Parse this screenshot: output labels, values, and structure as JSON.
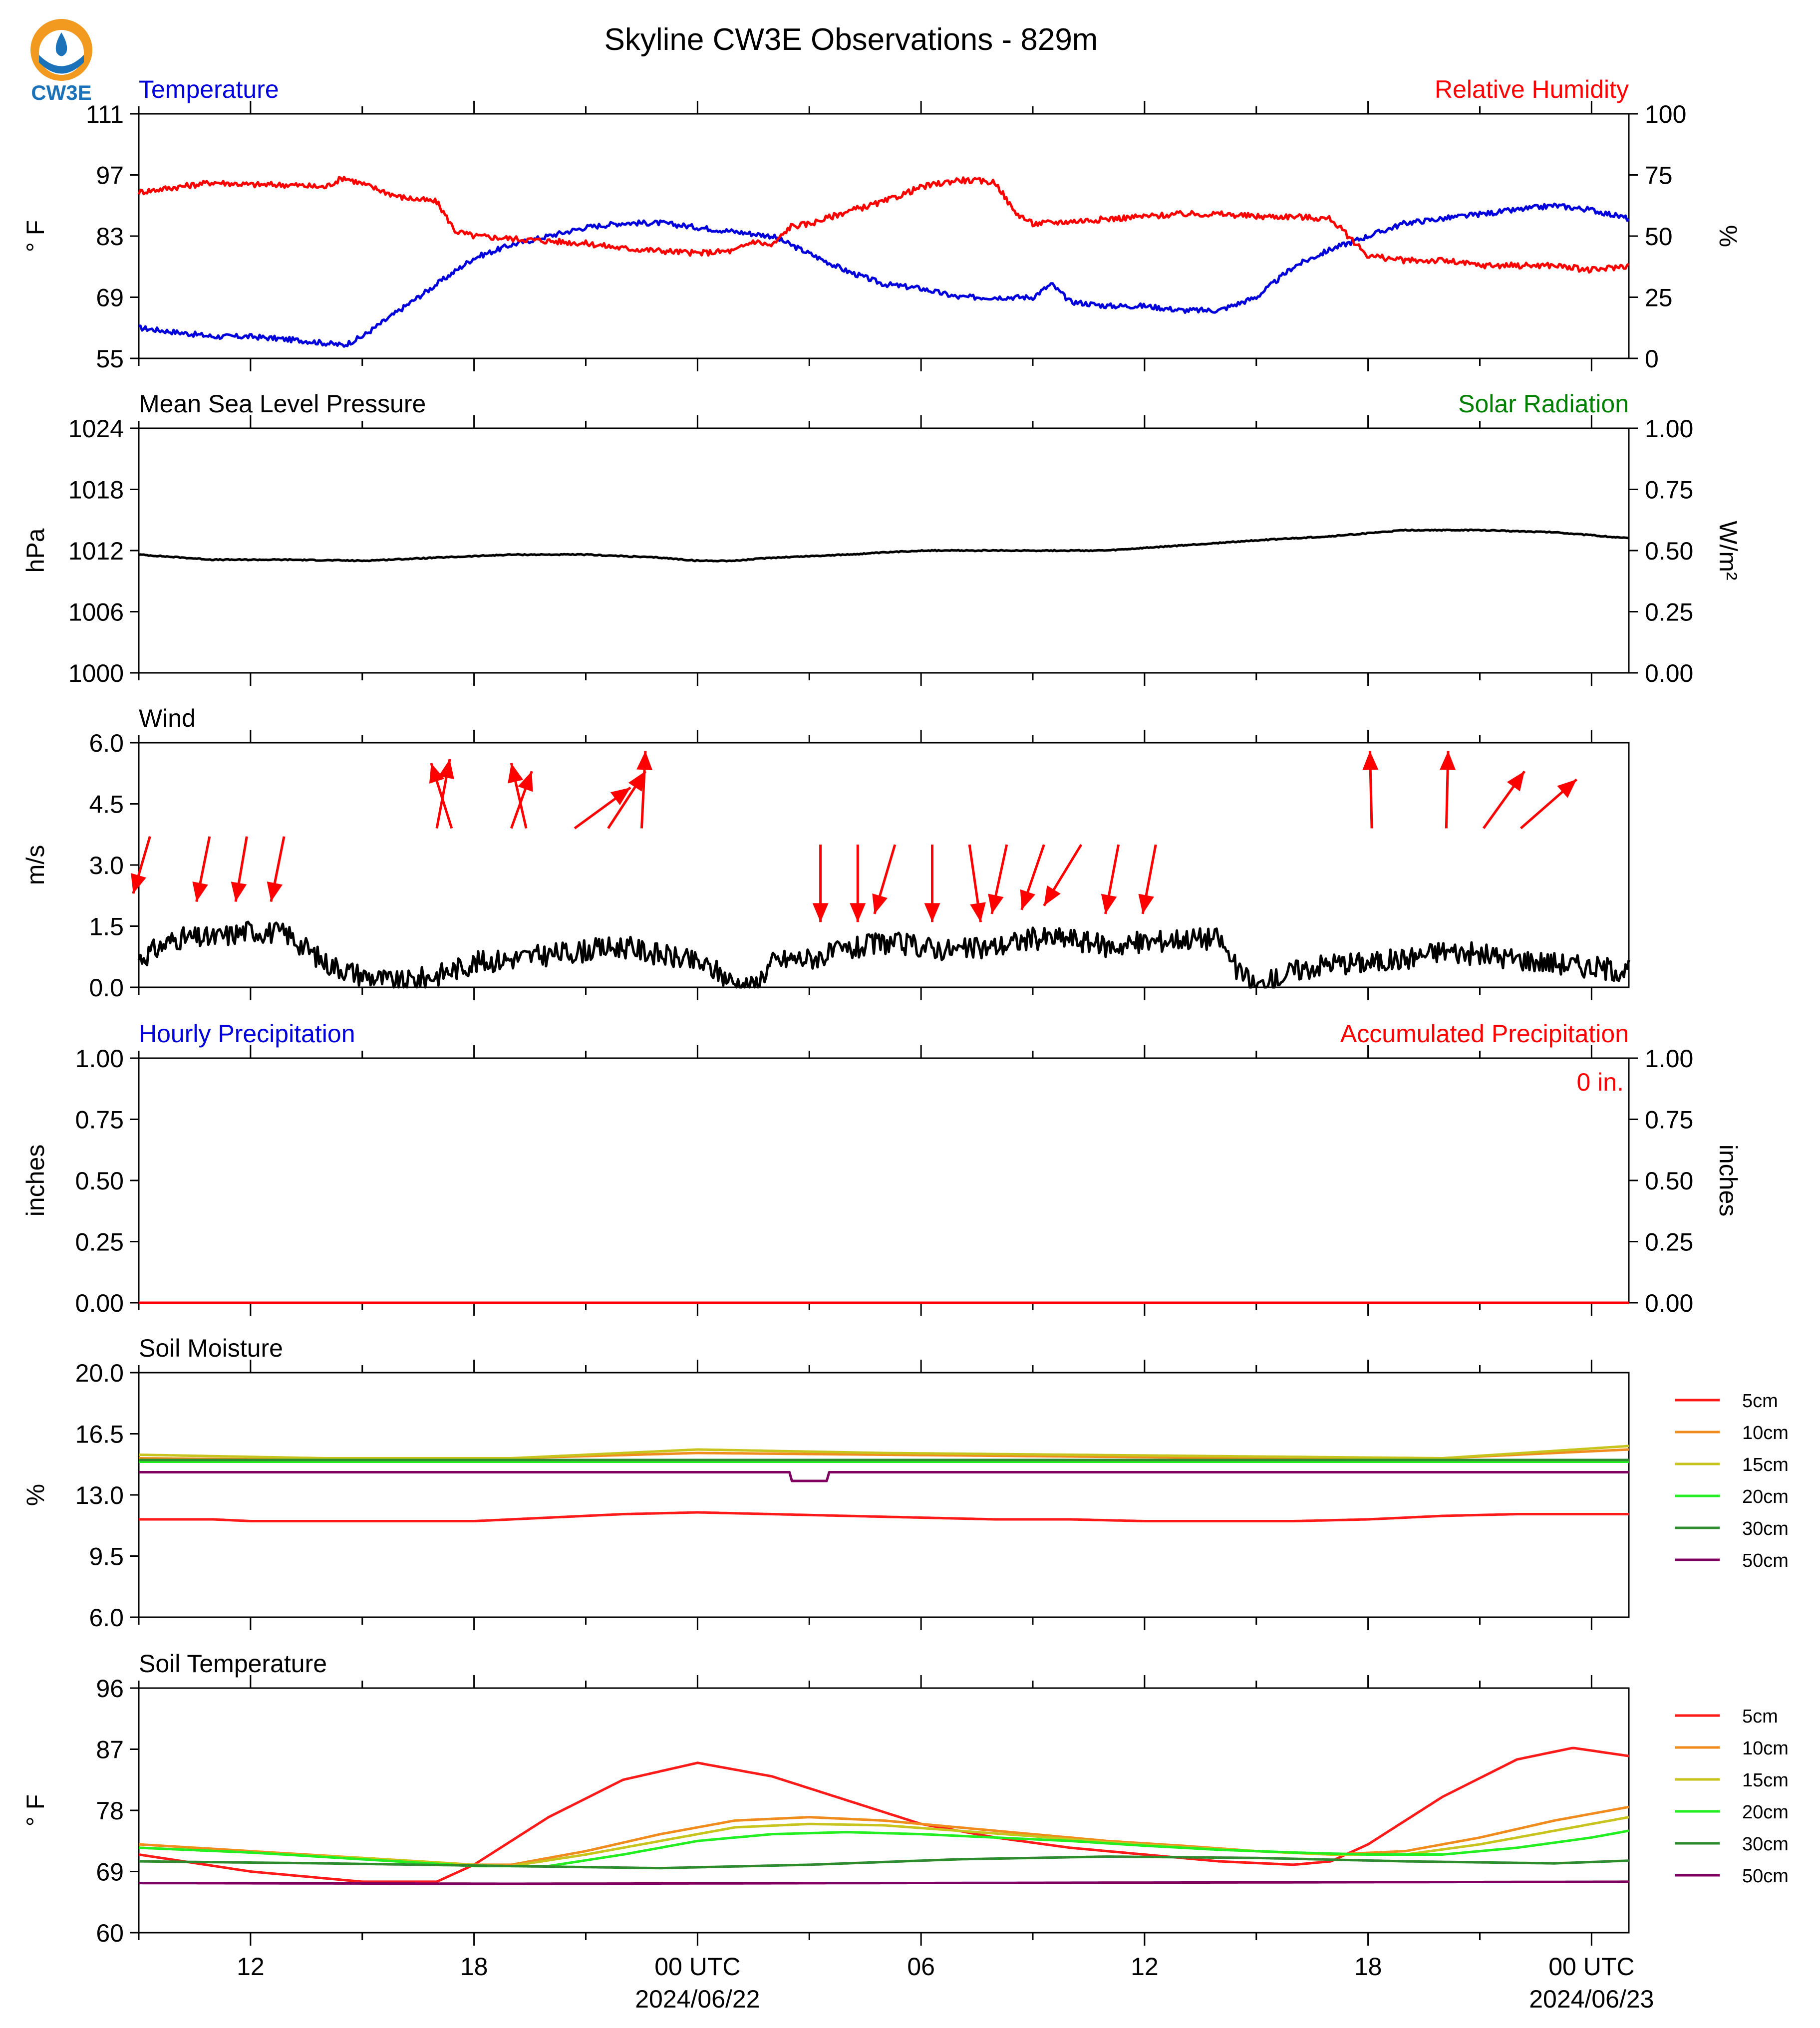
{
  "header": {
    "title": "Skyline CW3E Observations - 829m",
    "logo_text": "CW3E"
  },
  "colors": {
    "blue": "#0000dd",
    "red": "#ff0000",
    "green": "#008000",
    "black": "#000000",
    "soil_5cm": "#ff1a1a",
    "soil_10cm": "#f08c1e",
    "soil_15cm": "#c8c41e",
    "soil_20cm": "#22ee22",
    "soil_30cm": "#2e8b2e",
    "soil_50cm": "#800060"
  },
  "x_axis": {
    "range_hours": [
      -15,
      25
    ],
    "ticks_major": [
      {
        "hour": -12,
        "label": "12",
        "sub": ""
      },
      {
        "hour": -6,
        "label": "18",
        "sub": ""
      },
      {
        "hour": 0,
        "label": "00 UTC",
        "sub": "2024/06/22"
      },
      {
        "hour": 6,
        "label": "06",
        "sub": ""
      },
      {
        "hour": 12,
        "label": "12",
        "sub": ""
      },
      {
        "hour": 18,
        "label": "18",
        "sub": ""
      },
      {
        "hour": 24,
        "label": "00 UTC",
        "sub": "2024/06/23"
      }
    ]
  },
  "chart_data": [
    {
      "type": "line",
      "name": "temperature-humidity",
      "title_left": "Temperature",
      "title_right": "Relative Humidity",
      "ylabel_left": "° F",
      "ylabel_right": "%",
      "ylim_left": [
        55,
        111
      ],
      "yticks_left": [
        "111",
        "97",
        "83",
        "69",
        "55"
      ],
      "ylim_right": [
        0,
        100
      ],
      "yticks_right": [
        "100",
        "75",
        "50",
        "25",
        "0"
      ],
      "series": [
        {
          "key": "temperature",
          "axis": "left",
          "color": "#0000dd",
          "x": [
            -15,
            -13,
            -12,
            -10.5,
            -9.5,
            -9,
            -8,
            -7,
            -6,
            -5,
            -4,
            -3,
            -2,
            -1,
            0,
            1,
            2,
            3,
            4,
            5,
            6,
            7,
            8,
            9,
            9.5,
            10,
            11,
            12,
            13,
            14,
            15,
            16,
            17,
            18,
            19,
            20,
            21,
            22,
            23,
            24,
            25
          ],
          "y": [
            62,
            60,
            60,
            59,
            58,
            60,
            66,
            72,
            78,
            81,
            83,
            85,
            86,
            86,
            85,
            84,
            83,
            79,
            75,
            72,
            71,
            69,
            69,
            69,
            72,
            68,
            67,
            67,
            66,
            66,
            69,
            76,
            80,
            83,
            86,
            87,
            88,
            89,
            90,
            89,
            87
          ]
        },
        {
          "key": "relative_humidity",
          "axis": "right",
          "color": "#ff0000",
          "x": [
            -15,
            -13,
            -12,
            -11,
            -10,
            -9.5,
            -8,
            -7,
            -6.5,
            -6,
            -5,
            -4,
            -3,
            -2,
            -1,
            0,
            1,
            1.5,
            2,
            2.5,
            3,
            4,
            5,
            6,
            7,
            8,
            8.5,
            9,
            10,
            11,
            12,
            13,
            14,
            15,
            16,
            17,
            18,
            19,
            20,
            21,
            22,
            23,
            24,
            25
          ],
          "y": [
            68,
            72,
            71,
            71,
            70,
            74,
            66,
            64,
            52,
            50,
            49,
            48,
            47,
            45,
            44,
            43,
            44,
            48,
            46,
            54,
            55,
            60,
            64,
            70,
            73,
            72,
            60,
            55,
            56,
            57,
            58,
            59,
            59,
            58,
            58,
            57,
            42,
            40,
            40,
            38,
            38,
            38,
            36,
            38
          ]
        }
      ]
    },
    {
      "type": "line",
      "name": "pressure",
      "title_left": "Mean Sea Level Pressure",
      "title_right": "Solar Radiation",
      "ylabel_left": "hPa",
      "ylabel_right": "W/m²",
      "ylim_left": [
        1000,
        1024
      ],
      "yticks_left": [
        "1024",
        "1018",
        "1012",
        "1006",
        "1000"
      ],
      "ylim_right": [
        0,
        1
      ],
      "yticks_right": [
        "1.00",
        "0.75",
        "0.50",
        "0.25",
        "0.00"
      ],
      "series": [
        {
          "key": "mslp",
          "axis": "left",
          "color": "#000000",
          "x": [
            -15,
            -13,
            -11,
            -9,
            -7,
            -5,
            -3,
            -1,
            0,
            1,
            2,
            4,
            6,
            8,
            10,
            11,
            13,
            15,
            17,
            19,
            21,
            23,
            25
          ],
          "y": [
            1011.6,
            1011.1,
            1011.1,
            1011.0,
            1011.3,
            1011.6,
            1011.6,
            1011.3,
            1011.0,
            1011.0,
            1011.3,
            1011.6,
            1012.0,
            1012.0,
            1012.0,
            1012.0,
            1012.5,
            1013.0,
            1013.4,
            1014.0,
            1014.0,
            1013.8,
            1013.2
          ]
        }
      ]
    },
    {
      "type": "line",
      "name": "wind",
      "title_left": "Wind",
      "ylabel_left": "m/s",
      "ylim_left": [
        0,
        6
      ],
      "yticks_left": [
        "6.0",
        "4.5",
        "3.0",
        "1.5",
        "0.0"
      ],
      "series": [
        {
          "key": "wind_speed",
          "axis": "left",
          "color": "#000000",
          "x": [
            -15,
            -14,
            -13,
            -12,
            -11,
            -10,
            -9,
            -8,
            -7,
            -6,
            -5,
            -4,
            -3,
            -2,
            -1,
            0,
            0.5,
            1,
            1.5,
            2,
            2.5,
            3,
            4,
            5,
            6,
            7,
            8,
            9,
            10,
            11,
            12,
            13,
            14,
            14.5,
            15,
            16,
            17,
            18,
            19,
            20,
            21,
            22,
            23,
            24,
            25
          ],
          "y": [
            0.7,
            1.2,
            1.2,
            1.4,
            1.3,
            0.6,
            0.3,
            0.1,
            0.3,
            0.6,
            0.7,
            0.8,
            0.9,
            1.0,
            0.8,
            0.6,
            0.4,
            0.1,
            0,
            0.6,
            0.7,
            0.7,
            0.9,
            1.1,
            1.0,
            0.9,
            1.0,
            1.2,
            1.2,
            1.0,
            1.1,
            1.2,
            1.2,
            0.4,
            0,
            0.4,
            0.6,
            0.6,
            0.7,
            0.9,
            0.8,
            0.7,
            0.6,
            0.5,
            0.4
          ]
        }
      ],
      "arrows": [
        {
          "x": -14.7,
          "y": 3.7,
          "dx": -0.45,
          "dy": -1.4
        },
        {
          "x": -13.1,
          "y": 3.7,
          "dx": -0.35,
          "dy": -1.6
        },
        {
          "x": -12.1,
          "y": 3.7,
          "dx": -0.3,
          "dy": -1.6
        },
        {
          "x": -11.1,
          "y": 3.7,
          "dx": -0.35,
          "dy": -1.6
        },
        {
          "x": -7.0,
          "y": 3.9,
          "dx": 0.35,
          "dy": 1.7
        },
        {
          "x": -6.6,
          "y": 3.9,
          "dx": -0.55,
          "dy": 1.6
        },
        {
          "x": -5.0,
          "y": 3.9,
          "dx": 0.55,
          "dy": 1.4
        },
        {
          "x": -4.6,
          "y": 3.9,
          "dx": -0.4,
          "dy": 1.6
        },
        {
          "x": -3.3,
          "y": 3.9,
          "dx": 1.5,
          "dy": 1.0
        },
        {
          "x": -2.4,
          "y": 3.9,
          "dx": 1.0,
          "dy": 1.4
        },
        {
          "x": -1.5,
          "y": 3.9,
          "dx": 0.1,
          "dy": 1.9
        },
        {
          "x": 3.3,
          "y": 3.5,
          "dx": 0.0,
          "dy": -1.9
        },
        {
          "x": 4.3,
          "y": 3.5,
          "dx": 0.0,
          "dy": -1.9
        },
        {
          "x": 5.3,
          "y": 3.5,
          "dx": -0.55,
          "dy": -1.7
        },
        {
          "x": 6.3,
          "y": 3.5,
          "dx": 0.0,
          "dy": -1.9
        },
        {
          "x": 7.3,
          "y": 3.5,
          "dx": 0.3,
          "dy": -1.9
        },
        {
          "x": 8.3,
          "y": 3.5,
          "dx": -0.4,
          "dy": -1.7
        },
        {
          "x": 9.3,
          "y": 3.5,
          "dx": -0.6,
          "dy": -1.6
        },
        {
          "x": 10.3,
          "y": 3.5,
          "dx": -1.0,
          "dy": -1.5
        },
        {
          "x": 11.3,
          "y": 3.5,
          "dx": -0.35,
          "dy": -1.7
        },
        {
          "x": 12.3,
          "y": 3.5,
          "dx": -0.35,
          "dy": -1.7
        },
        {
          "x": 18.1,
          "y": 3.9,
          "dx": -0.05,
          "dy": 1.9
        },
        {
          "x": 20.1,
          "y": 3.9,
          "dx": 0.05,
          "dy": 1.9
        },
        {
          "x": 21.1,
          "y": 3.9,
          "dx": 1.1,
          "dy": 1.4
        },
        {
          "x": 22.1,
          "y": 3.9,
          "dx": 1.5,
          "dy": 1.2
        }
      ]
    },
    {
      "type": "line",
      "name": "precipitation",
      "title_left": "Hourly Precipitation",
      "title_right": "Accumulated Precipitation",
      "annotation": "0 in.",
      "ylabel_left": "inches",
      "ylabel_right": "inches",
      "ylim_left": [
        0,
        1
      ],
      "yticks_left": [
        "1.00",
        "0.75",
        "0.50",
        "0.25",
        "0.00"
      ],
      "ylim_right": [
        0,
        1
      ],
      "yticks_right": [
        "1.00",
        "0.75",
        "0.50",
        "0.25",
        "0.00"
      ],
      "series": [
        {
          "key": "hourly_precip",
          "axis": "left",
          "color": "#0000dd",
          "x": [
            -15,
            25
          ],
          "y": [
            0,
            0
          ]
        },
        {
          "key": "accum_precip",
          "axis": "right",
          "color": "#ff0000",
          "x": [
            -15,
            25
          ],
          "y": [
            0,
            0
          ]
        }
      ]
    },
    {
      "type": "line",
      "name": "soil-moisture",
      "title_left": "Soil Moisture",
      "ylabel_left": "%",
      "ylim_left": [
        6,
        20
      ],
      "yticks_left": [
        "20.0",
        "16.5",
        "13.0",
        "9.5",
        "6.0"
      ],
      "series": [
        {
          "name": "5cm",
          "color": "#ff1a1a",
          "x": [
            -15,
            -13,
            -12,
            -6,
            -5,
            -4,
            -2,
            0,
            2,
            4,
            6,
            8,
            10,
            12,
            14,
            16,
            18,
            20,
            22,
            24,
            25
          ],
          "y": [
            11.6,
            11.6,
            11.5,
            11.5,
            11.6,
            11.7,
            11.9,
            12.0,
            11.9,
            11.8,
            11.7,
            11.6,
            11.6,
            11.5,
            11.5,
            11.5,
            11.6,
            11.8,
            11.9,
            11.9,
            11.9
          ]
        },
        {
          "name": "10cm",
          "color": "#f08c1e",
          "x": [
            -15,
            -10,
            -5,
            0,
            5,
            10,
            15,
            20,
            25
          ],
          "y": [
            15.1,
            15.0,
            15.1,
            15.4,
            15.3,
            15.2,
            15.1,
            15.1,
            15.6
          ]
        },
        {
          "name": "15cm",
          "color": "#c8c41e",
          "x": [
            -15,
            -10,
            -5,
            0,
            5,
            10,
            15,
            20,
            25
          ],
          "y": [
            15.3,
            15.1,
            15.1,
            15.6,
            15.4,
            15.3,
            15.2,
            15.1,
            15.8
          ]
        },
        {
          "name": "20cm",
          "color": "#22ee22",
          "x": [
            -15,
            25
          ],
          "y": [
            14.9,
            14.9
          ]
        },
        {
          "name": "30cm",
          "color": "#2e8b2e",
          "x": [
            -15,
            25
          ],
          "y": [
            15.0,
            15.0
          ]
        },
        {
          "name": "50cm",
          "color": "#800060",
          "x": [
            -15,
            -1.5,
            2.5,
            2.5,
            3.5,
            3.5,
            25
          ],
          "y": [
            14.3,
            14.3,
            14.3,
            13.8,
            13.8,
            14.3,
            14.3
          ]
        }
      ],
      "legend": [
        "5cm",
        "10cm",
        "15cm",
        "20cm",
        "30cm",
        "50cm"
      ]
    },
    {
      "type": "line",
      "name": "soil-temperature",
      "title_left": "Soil Temperature",
      "ylabel_left": "° F",
      "ylim_left": [
        60,
        96
      ],
      "yticks_left": [
        "96",
        "87",
        "78",
        "69",
        "60"
      ],
      "series": [
        {
          "name": "5cm",
          "color": "#ff1a1a",
          "x": [
            -15,
            -12,
            -9,
            -7,
            -6,
            -4,
            -2,
            0,
            2,
            4,
            6,
            8,
            10,
            12,
            14,
            16,
            17,
            18,
            20,
            22,
            23.5,
            25
          ],
          "y": [
            71.5,
            69,
            67.5,
            67.5,
            70,
            77,
            82.5,
            85,
            83,
            79.5,
            76,
            74,
            72.5,
            71.5,
            70.5,
            70,
            70.5,
            73,
            80,
            85.5,
            87.2,
            86
          ]
        },
        {
          "name": "10cm",
          "color": "#f08c1e",
          "x": [
            -15,
            -12,
            -9,
            -6,
            -5,
            -3,
            -1,
            1,
            3,
            5,
            7,
            9,
            11,
            13,
            15,
            17,
            19,
            21,
            23,
            25
          ],
          "y": [
            73,
            72,
            71,
            70,
            70,
            72,
            74.5,
            76.5,
            77,
            76.5,
            75.5,
            74.5,
            73.5,
            72.8,
            72,
            71.5,
            72,
            74,
            76.5,
            78.5
          ]
        },
        {
          "name": "15cm",
          "color": "#c8c41e",
          "x": [
            -15,
            -12,
            -9,
            -6,
            -5,
            -3,
            -1,
            1,
            3,
            5,
            7,
            9,
            11,
            13,
            15,
            17,
            19,
            21,
            23,
            25
          ],
          "y": [
            72.5,
            71.8,
            71,
            70,
            69.8,
            71.5,
            73.5,
            75.5,
            76,
            75.8,
            75,
            74.2,
            73.3,
            72.6,
            72,
            71.5,
            71.5,
            73,
            75,
            77
          ]
        },
        {
          "name": "20cm",
          "color": "#22ee22",
          "x": [
            -15,
            -12,
            -9,
            -6,
            -4,
            -2,
            0,
            2,
            4,
            6,
            8,
            10,
            12,
            14,
            16,
            18,
            20,
            22,
            24,
            25
          ],
          "y": [
            72.5,
            71.8,
            70.8,
            69.8,
            69.8,
            71.5,
            73.5,
            74.5,
            74.8,
            74.5,
            74,
            73.5,
            72.8,
            72.2,
            71.8,
            71.5,
            71.5,
            72.5,
            74,
            75
          ]
        },
        {
          "name": "30cm",
          "color": "#2e8b2e",
          "x": [
            -15,
            -10,
            -5,
            -1,
            3,
            7,
            11,
            15,
            19,
            23,
            25
          ],
          "y": [
            70.5,
            70.2,
            69.8,
            69.5,
            70,
            70.8,
            71.2,
            71,
            70.5,
            70.2,
            70.6
          ]
        },
        {
          "name": "50cm",
          "color": "#800060",
          "x": [
            -15,
            -5,
            5,
            15,
            25
          ],
          "y": [
            67.3,
            67.2,
            67.3,
            67.4,
            67.5
          ]
        }
      ],
      "legend": [
        "5cm",
        "10cm",
        "15cm",
        "20cm",
        "30cm",
        "50cm"
      ]
    }
  ]
}
